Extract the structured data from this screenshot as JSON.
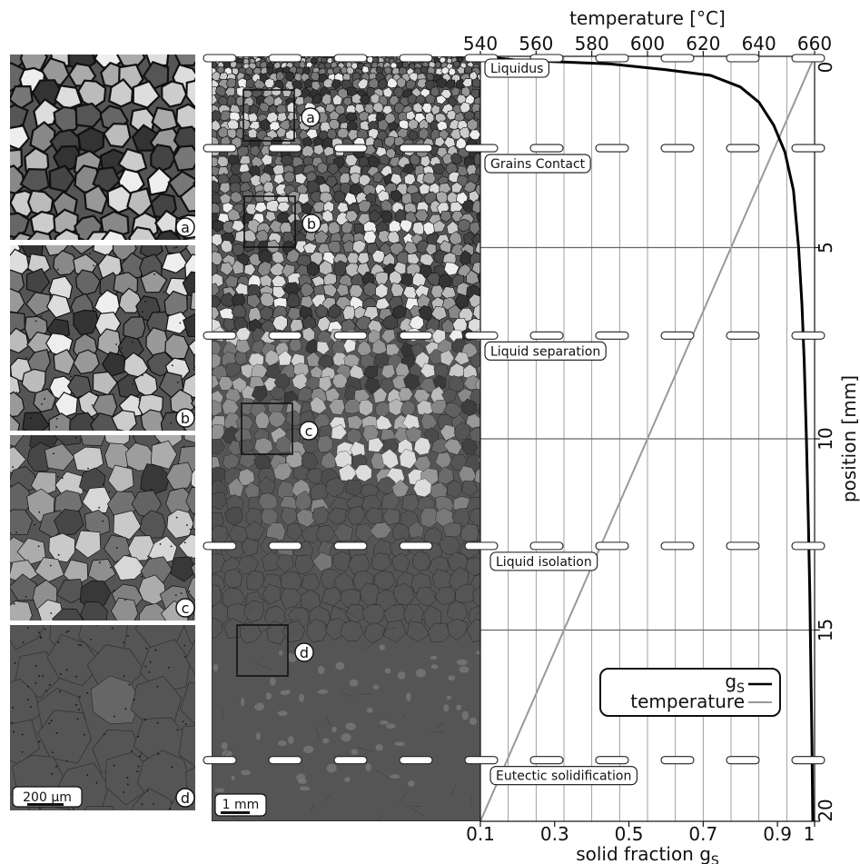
{
  "chart_data": {
    "type": "line",
    "x_bottom": {
      "label": "solid fraction g",
      "label_sub": "S",
      "range": [
        0.1,
        1.0
      ],
      "ticks": [
        0.1,
        0.3,
        0.5,
        0.7,
        0.9,
        1.0
      ],
      "tick_labels": [
        "0.1",
        "0.3",
        "0.5",
        "0.7",
        "0.9",
        "1"
      ]
    },
    "x_top": {
      "label": "temperature [°C]",
      "range": [
        540,
        660
      ],
      "ticks": [
        540,
        560,
        580,
        600,
        620,
        640,
        660
      ],
      "tick_labels": [
        "540",
        "560",
        "580",
        "600",
        "620",
        "640",
        "660"
      ]
    },
    "y": {
      "label": "position [mm]",
      "range": [
        0,
        20
      ],
      "inverted": true,
      "ticks": [
        0,
        5,
        10,
        15,
        20
      ],
      "tick_labels": [
        "0",
        "5",
        "10",
        "15",
        "20"
      ]
    },
    "grid": {
      "vertical_temperature_lines": [
        540,
        550,
        560,
        570,
        580,
        590,
        600,
        610,
        620,
        630,
        640,
        650,
        660
      ],
      "horizontal_position_lines": [
        5,
        10,
        15
      ]
    },
    "series": [
      {
        "name": "g",
        "name_sub": "S",
        "axis": "solid_fraction",
        "color": "#000000",
        "points": [
          {
            "pos": 0.0,
            "gs": 0.1
          },
          {
            "pos": 0.1,
            "gs": 0.2
          },
          {
            "pos": 0.2,
            "gs": 0.45
          },
          {
            "pos": 0.35,
            "gs": 0.6
          },
          {
            "pos": 0.5,
            "gs": 0.72
          },
          {
            "pos": 0.8,
            "gs": 0.8
          },
          {
            "pos": 1.2,
            "gs": 0.85
          },
          {
            "pos": 1.8,
            "gs": 0.89
          },
          {
            "pos": 2.5,
            "gs": 0.92
          },
          {
            "pos": 3.5,
            "gs": 0.943
          },
          {
            "pos": 5.0,
            "gs": 0.957
          },
          {
            "pos": 6.5,
            "gs": 0.966
          },
          {
            "pos": 8.0,
            "gs": 0.972
          },
          {
            "pos": 10.0,
            "gs": 0.978
          },
          {
            "pos": 12.0,
            "gs": 0.983
          },
          {
            "pos": 14.0,
            "gs": 0.987
          },
          {
            "pos": 16.0,
            "gs": 0.99
          },
          {
            "pos": 18.0,
            "gs": 0.993
          },
          {
            "pos": 20.0,
            "gs": 0.995
          }
        ]
      },
      {
        "name": "temperature",
        "axis": "temperature",
        "color": "#999999",
        "points": [
          {
            "pos": 0.0,
            "temp": 660
          },
          {
            "pos": 20.0,
            "temp": 540
          }
        ]
      }
    ],
    "phase_markers": [
      {
        "label": "Liquidus",
        "pos": 0.0
      },
      {
        "label": "Grains Contact",
        "pos": 2.4
      },
      {
        "label": "Liquid separation",
        "pos": 7.3
      },
      {
        "label": "Liquid isolation",
        "pos": 12.8
      },
      {
        "label": "Eutectic solidification",
        "pos": 18.4
      }
    ],
    "legend": {
      "placement": "bottom-right",
      "entries": [
        {
          "name": "g",
          "name_sub": "S",
          "color": "#000000"
        },
        {
          "name": "temperature",
          "color": "#999999"
        }
      ]
    }
  },
  "micrographs": {
    "panels": [
      {
        "label": "a",
        "grain_scale": "coarse",
        "pos_center": 1.0
      },
      {
        "label": "b",
        "grain_scale": "medium",
        "pos_center": 3.0
      },
      {
        "label": "c",
        "grain_scale": "merging",
        "pos_center": 9.0
      },
      {
        "label": "d",
        "grain_scale": "coalesced",
        "pos_center": 15.5
      }
    ],
    "left_scale_bar": "200 µm",
    "main_scale_bar": "1 mm"
  },
  "colors": {
    "matrix_dark": "#555555",
    "grain_boundary": "#111111",
    "gs_curve": "#000000",
    "temperature_curve": "#999999",
    "grid": "#8a8a8a"
  }
}
